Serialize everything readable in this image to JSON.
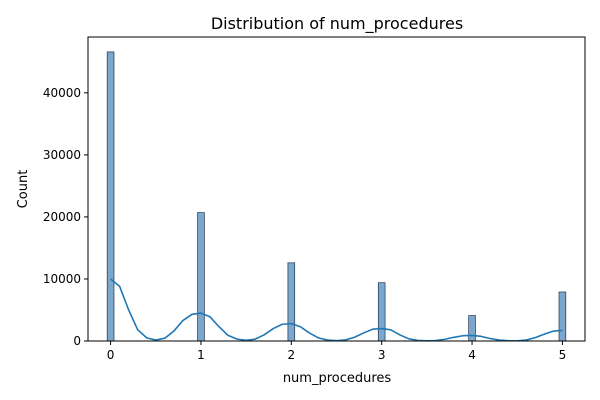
{
  "chart_data": {
    "type": "bar",
    "title": "Distribution of num_procedures",
    "xlabel": "num_procedures",
    "ylabel": "Count",
    "categories": [
      0,
      1,
      2,
      3,
      4,
      5
    ],
    "values": [
      46600,
      20700,
      12600,
      9400,
      4100,
      7900
    ],
    "xlim": [
      -0.25,
      5.25
    ],
    "ylim": [
      0,
      49000
    ],
    "xticks": [
      "0",
      "1",
      "2",
      "3",
      "4",
      "5"
    ],
    "yticks": [
      "0",
      "10000",
      "20000",
      "30000",
      "40000"
    ],
    "kde": {
      "label": "kde",
      "x": [
        0.0,
        0.1,
        0.2,
        0.3,
        0.4,
        0.5,
        0.6,
        0.7,
        0.8,
        0.9,
        1.0,
        1.1,
        1.2,
        1.3,
        1.4,
        1.5,
        1.6,
        1.7,
        1.8,
        1.9,
        2.0,
        2.1,
        2.2,
        2.3,
        2.4,
        2.5,
        2.6,
        2.7,
        2.8,
        2.9,
        3.0,
        3.1,
        3.2,
        3.3,
        3.4,
        3.5,
        3.6,
        3.7,
        3.8,
        3.9,
        4.0,
        4.1,
        4.2,
        4.3,
        4.4,
        4.5,
        4.6,
        4.7,
        4.8,
        4.9,
        5.0
      ],
      "y": [
        10000,
        8800,
        5000,
        1800,
        500,
        150,
        450,
        1600,
        3300,
        4300,
        4500,
        3900,
        2300,
        900,
        300,
        120,
        300,
        1000,
        2000,
        2700,
        2800,
        2300,
        1300,
        500,
        150,
        60,
        180,
        600,
        1300,
        1900,
        2000,
        1800,
        1000,
        350,
        100,
        30,
        80,
        280,
        600,
        850,
        900,
        750,
        400,
        150,
        50,
        40,
        150,
        550,
        1100,
        1600,
        1700
      ]
    },
    "grid": false,
    "bar_color": "#7ba7cc",
    "bar_edge_color": "#1f3550",
    "line_color": "#1f77b4"
  }
}
